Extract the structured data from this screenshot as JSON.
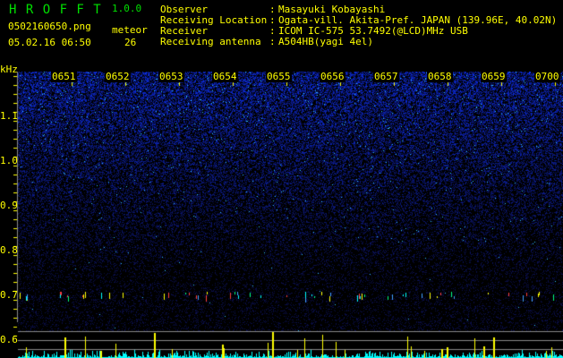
{
  "app": {
    "name": "H R O F F T",
    "version": "1.0.0"
  },
  "file": {
    "name": "0502160650.png",
    "datetime": "05.02.16 06:50"
  },
  "meteor": {
    "label": "meteor",
    "count": "26"
  },
  "info": [
    {
      "label": "Observer",
      "sep": ":",
      "value": "Masayuki Kobayashi"
    },
    {
      "label": "Receiving Location",
      "sep": ":",
      "value": "Ogata-vill. Akita-Pref. JAPAN (139.96E, 40.02N)"
    },
    {
      "label": "Receiver",
      "sep": ":",
      "value": "ICOM IC-575 53.7492(@LCD)MHz USB"
    },
    {
      "label": "Receiving antenna",
      "sep": ":",
      "value": "A504HB(yagi 4el)"
    }
  ],
  "spectrogram": {
    "y_unit": "kHz",
    "y_ticks": [
      "1.1",
      "1.0",
      "0.9",
      "0.8",
      "0.7",
      "0.6"
    ],
    "time_ticks": [
      "0651",
      "0652",
      "0653",
      "0654",
      "0655",
      "0656",
      "0657",
      "0658",
      "0659",
      "0700"
    ],
    "colors": {
      "background": "#000000",
      "noise": "#1a2ad0",
      "labels": "#ffff00",
      "title": "#00e000",
      "histogram": "#00ffff",
      "meteor_bars": "#ffff00"
    }
  }
}
